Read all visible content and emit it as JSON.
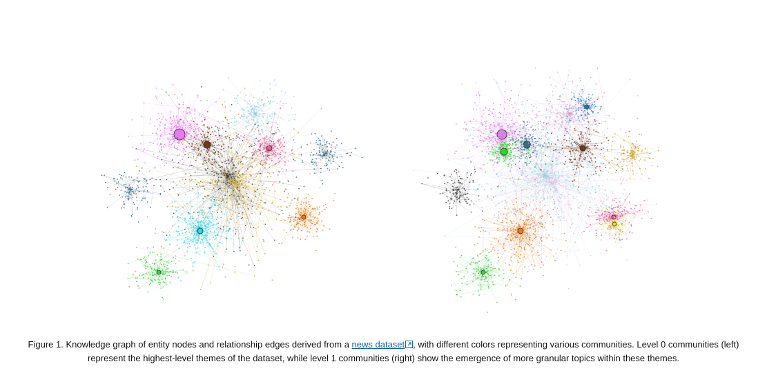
{
  "figure": {
    "caption": {
      "before_link": "Figure 1. Knowledge graph of entity nodes and relationship edges derived from a ",
      "link": "news dataset",
      "after_link": ", with different colors representing various communities. Level 0 communities (left) represent the highest-level themes of the dataset, while level 1 communities (right) show the emergence of more granular topics within these themes."
    }
  }
}
